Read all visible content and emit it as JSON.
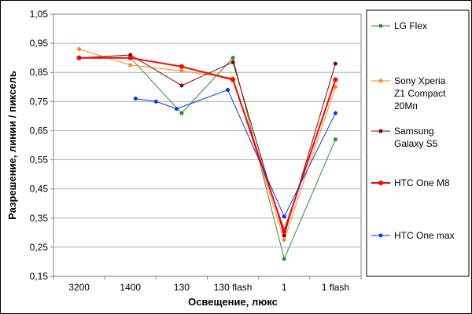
{
  "chart_data": {
    "type": "line",
    "title": "",
    "xlabel": "Освещение, люкс",
    "ylabel": "Разрешение, линии / пиксель",
    "categories": [
      "3200",
      "1400",
      "130",
      "130 flash",
      "1",
      "1 flash"
    ],
    "ylim": [
      0.15,
      1.05
    ],
    "yticks": [
      "0,15",
      "0,25",
      "0,35",
      "0,45",
      "0,55",
      "0,65",
      "0,75",
      "0,85",
      "0,95",
      "1,05"
    ],
    "grid": "horizontal",
    "legend": "right",
    "series": [
      {
        "name": "LG Flex",
        "color": "#2e8b2e",
        "width": 1,
        "x": [
          1,
          2,
          3,
          4,
          5,
          6
        ],
        "y": [
          0.9,
          0.9,
          0.71,
          0.9,
          0.21,
          0.62
        ]
      },
      {
        "name": "Sony Xperia Z1 Compact 20Мп",
        "color": "#ff8c1a",
        "width": 1,
        "x": [
          1,
          2,
          3,
          4,
          5,
          6
        ],
        "y": [
          0.93,
          0.875,
          0.855,
          0.83,
          0.275,
          0.8
        ]
      },
      {
        "name": "Samsung Galaxy S5",
        "color": "#800000",
        "width": 1,
        "x": [
          1,
          2,
          3,
          4,
          5,
          6
        ],
        "y": [
          0.9,
          0.91,
          0.805,
          0.885,
          0.29,
          0.88
        ]
      },
      {
        "name": "HTC One M8",
        "color": "#ff0000",
        "width": 2,
        "x": [
          1,
          2,
          3,
          4,
          5,
          6
        ],
        "y": [
          0.9,
          0.9,
          0.87,
          0.825,
          0.305,
          0.825
        ]
      },
      {
        "name": "HTC One max",
        "color": "#0033ff",
        "width": 1,
        "x": [
          2.1,
          2.5,
          2.9,
          3.9,
          5,
          6
        ],
        "y": [
          0.76,
          0.75,
          0.725,
          0.79,
          0.355,
          0.71
        ]
      }
    ]
  }
}
